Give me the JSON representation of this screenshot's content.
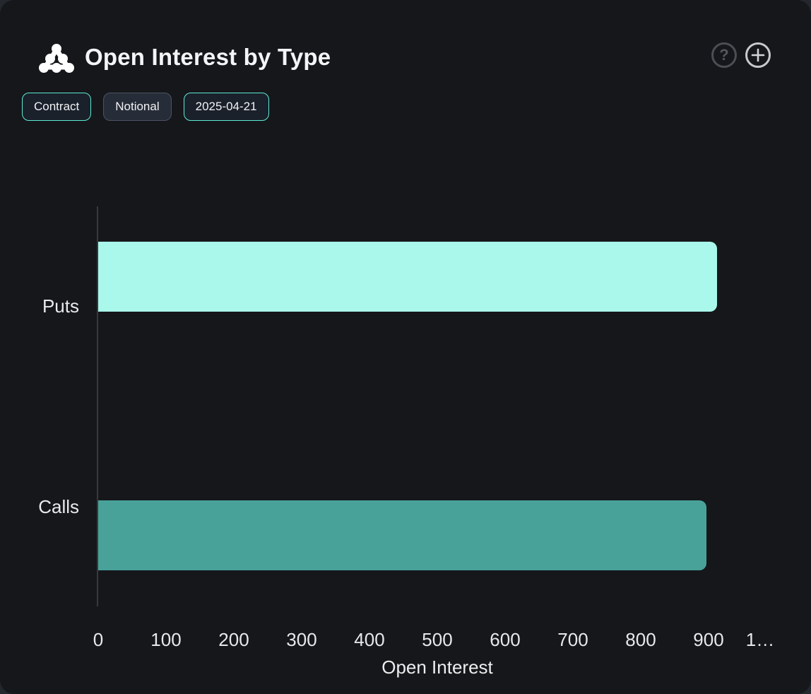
{
  "header": {
    "title": "Open Interest by Type",
    "icon": "cluster-pyramid-icon",
    "actions": {
      "help_label": "?",
      "add_label": "+"
    }
  },
  "chips": [
    {
      "label": "Contract",
      "active": true
    },
    {
      "label": "Notional",
      "active": false
    },
    {
      "label": "2025-04-21",
      "active": true
    }
  ],
  "colors": {
    "card_bg": "#15171a",
    "accent": "#5eead4",
    "puts_bar": "#a9f8eb",
    "calls_bar": "#49a29a",
    "axis_line": "#37393e",
    "text": "#e9eaec"
  },
  "chart_data": {
    "type": "bar",
    "orientation": "horizontal",
    "title": "Open Interest by Type",
    "categories": [
      "Puts",
      "Calls"
    ],
    "series": [
      {
        "name": "Puts",
        "value": 912,
        "color": "#a9f8eb"
      },
      {
        "name": "Calls",
        "value": 897,
        "color": "#49a29a"
      }
    ],
    "xlabel": "Open Interest",
    "ylabel": "",
    "xlim": [
      0,
      1050
    ],
    "x_ticks": [
      0,
      100,
      200,
      300,
      400,
      500,
      600,
      700,
      800,
      900,
      1000
    ],
    "x_tick_labels": [
      "0",
      "100",
      "200",
      "300",
      "400",
      "500",
      "600",
      "700",
      "800",
      "900",
      "1…"
    ],
    "grid": false,
    "legend": false
  }
}
